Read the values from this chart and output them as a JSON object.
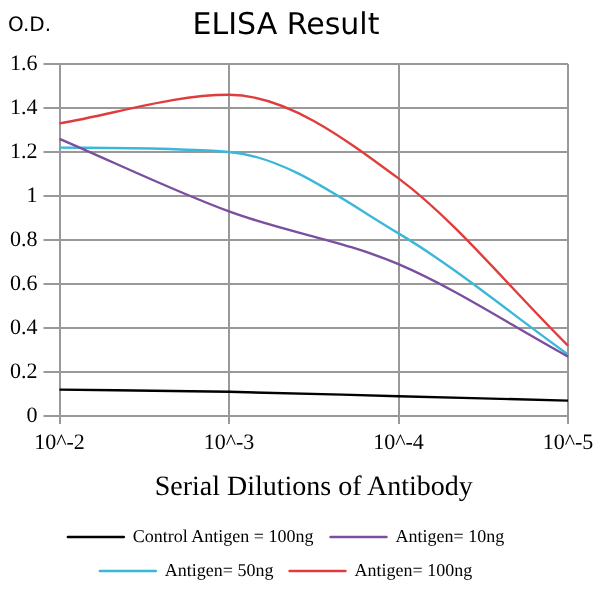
{
  "chart_data": {
    "type": "line",
    "title": "ELISA Result",
    "xlabel": "Serial Dilutions of Antibody",
    "ylabel": "O.D.",
    "categories": [
      "10^-2",
      "10^-3",
      "10^-4",
      "10^-5"
    ],
    "series": [
      {
        "name": "Control Antigen = 100ng",
        "color": "#000000",
        "values": [
          0.12,
          0.11,
          0.09,
          0.07
        ]
      },
      {
        "name": "Antigen= 10ng",
        "color": "#7b4fa0",
        "values": [
          1.26,
          0.93,
          0.69,
          0.27
        ]
      },
      {
        "name": "Antigen= 50ng",
        "color": "#3bb8d8",
        "values": [
          1.22,
          1.2,
          0.83,
          0.28
        ]
      },
      {
        "name": "Antigen= 100ng",
        "color": "#e03c3c",
        "values": [
          1.33,
          1.46,
          1.08,
          0.32
        ]
      }
    ],
    "ylim": [
      0,
      1.6
    ],
    "yticks": [
      0,
      0.2,
      0.4,
      0.6,
      0.8,
      1,
      1.2,
      1.4,
      1.6
    ],
    "grid": true,
    "legend": "bottom",
    "marker": "none",
    "line_style": "solid"
  }
}
